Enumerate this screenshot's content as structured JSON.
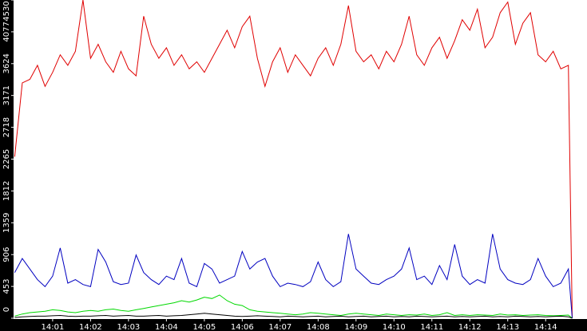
{
  "chart_data": {
    "type": "line",
    "x": [
      0,
      0.2,
      0.4,
      0.6,
      0.8,
      1,
      1.2,
      1.4,
      1.6,
      1.8,
      2,
      2.2,
      2.4,
      2.6,
      2.8,
      3,
      3.2,
      3.4,
      3.6,
      3.8,
      4,
      4.2,
      4.4,
      4.6,
      4.8,
      5,
      5.2,
      5.4,
      5.6,
      5.8,
      6,
      6.2,
      6.4,
      6.6,
      6.8,
      7,
      7.2,
      7.4,
      7.6,
      7.8,
      8,
      8.2,
      8.4,
      8.6,
      8.8,
      9,
      9.2,
      9.4,
      9.6,
      9.8,
      10,
      10.2,
      10.4,
      10.6,
      10.8,
      11,
      11.2,
      11.4,
      11.6,
      11.8,
      12,
      12.2,
      12.4,
      12.6,
      12.8,
      13,
      13.2,
      13.4,
      13.6,
      13.8,
      14,
      14.2,
      14.4,
      14.6,
      14.7
    ],
    "series": [
      {
        "color": "#e00000",
        "values": [
          2300,
          3350,
          3400,
          3600,
          3300,
          3500,
          3750,
          3600,
          3800,
          4530,
          3700,
          3900,
          3650,
          3500,
          3800,
          3550,
          3450,
          4300,
          3900,
          3700,
          3850,
          3600,
          3750,
          3550,
          3650,
          3500,
          3700,
          3900,
          4100,
          3850,
          4150,
          4300,
          3700,
          3300,
          3650,
          3850,
          3500,
          3750,
          3600,
          3450,
          3700,
          3850,
          3600,
          3900,
          4450,
          3800,
          3650,
          3750,
          3550,
          3800,
          3650,
          3900,
          4300,
          3750,
          3600,
          3850,
          4000,
          3700,
          3950,
          4250,
          4100,
          4400,
          3850,
          4000,
          4350,
          4500,
          3900,
          4200,
          4350,
          3750,
          3650,
          3800,
          3550,
          3600,
          0
        ]
      },
      {
        "color": "#0000c0",
        "values": [
          650,
          850,
          700,
          550,
          450,
          600,
          1000,
          500,
          550,
          480,
          450,
          980,
          800,
          520,
          480,
          500,
          900,
          650,
          550,
          480,
          600,
          550,
          850,
          500,
          450,
          780,
          700,
          500,
          550,
          600,
          950,
          700,
          800,
          850,
          600,
          450,
          500,
          480,
          450,
          520,
          800,
          550,
          450,
          520,
          1200,
          700,
          600,
          500,
          480,
          550,
          600,
          700,
          1000,
          550,
          600,
          480,
          750,
          550,
          1050,
          600,
          480,
          550,
          500,
          1200,
          700,
          550,
          500,
          480,
          550,
          850,
          600,
          450,
          500,
          700,
          0
        ]
      },
      {
        "color": "#00d800",
        "values": [
          30,
          60,
          80,
          90,
          100,
          120,
          110,
          90,
          80,
          100,
          110,
          100,
          120,
          130,
          110,
          100,
          120,
          140,
          160,
          180,
          200,
          220,
          250,
          230,
          260,
          300,
          280,
          330,
          250,
          200,
          180,
          120,
          100,
          90,
          80,
          70,
          60,
          50,
          60,
          80,
          70,
          60,
          50,
          40,
          60,
          70,
          60,
          50,
          40,
          60,
          50,
          40,
          50,
          45,
          60,
          40,
          50,
          80,
          40,
          50,
          40,
          50,
          45,
          40,
          60,
          45,
          50,
          40,
          45,
          50,
          40,
          35,
          40,
          45,
          0
        ]
      },
      {
        "color": "#000000",
        "values": [
          10,
          20,
          25,
          30,
          30,
          35,
          40,
          30,
          25,
          30,
          30,
          35,
          40,
          30,
          35,
          40,
          30,
          30,
          35,
          40,
          30,
          35,
          40,
          50,
          60,
          70,
          60,
          50,
          40,
          30,
          25,
          30,
          35,
          30,
          25,
          20,
          30,
          25,
          20,
          25,
          30,
          20,
          25,
          30,
          20,
          25,
          30,
          20,
          25,
          30,
          20,
          25,
          20,
          30,
          25,
          20,
          25,
          30,
          20,
          25,
          20,
          25,
          30,
          20,
          25,
          20,
          30,
          25,
          20,
          25,
          20,
          25,
          30,
          20,
          0
        ]
      }
    ],
    "xlim": [
      -0.03,
      15.09
    ],
    "xticks": [
      {
        "value": 1,
        "label": "14:01"
      },
      {
        "value": 2,
        "label": "14:02"
      },
      {
        "value": 3,
        "label": "14:03"
      },
      {
        "value": 4,
        "label": "14:04"
      },
      {
        "value": 5,
        "label": "14:05"
      },
      {
        "value": 6,
        "label": "14:06"
      },
      {
        "value": 7,
        "label": "14:07"
      },
      {
        "value": 8,
        "label": "14:08"
      },
      {
        "value": 9,
        "label": "14:09"
      },
      {
        "value": 10,
        "label": "14:10"
      },
      {
        "value": 11,
        "label": "14:11"
      },
      {
        "value": 12,
        "label": "14:12"
      },
      {
        "value": 13,
        "label": "14:13"
      },
      {
        "value": 14,
        "label": "14:14"
      }
    ],
    "ylim": [
      0,
      4530
    ],
    "yticks": [
      0,
      453,
      906,
      1359,
      1812,
      2265,
      2718,
      3171,
      3624,
      4077,
      4530
    ]
  }
}
